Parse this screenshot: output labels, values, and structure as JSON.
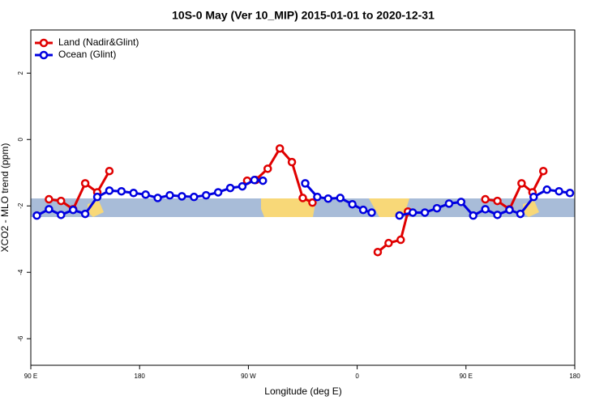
{
  "chart_data": {
    "type": "line",
    "title": "10S-0 May (Ver 10_MIP)   2015-01-01 to 2020-12-31",
    "x_label": "Longitude (deg E)",
    "y_label": "XCO2 - MLO trend (ppm)",
    "xlim": [
      90,
      540
    ],
    "xticks": [
      {
        "value": 90,
        "label": "90 E"
      },
      180,
      {
        "value": 270,
        "label": "90 W"
      },
      {
        "value": 360,
        "label": "0"
      },
      {
        "value": 450,
        "label": "90 E"
      },
      {
        "value": 540,
        "label": "180"
      }
    ],
    "ylim": [
      -6.8,
      3.3
    ],
    "yticks": [
      2,
      0,
      -2,
      -4,
      -6
    ],
    "grid": false,
    "legend": "top-left",
    "series": [
      {
        "name": "Land (Nadir&Glint)",
        "color": "#e00000",
        "x": [
          105,
          115,
          125,
          135,
          145,
          155,
          210,
          269,
          276,
          286,
          296,
          306,
          315,
          323,
          350,
          377,
          386,
          396,
          402,
          430,
          466,
          476,
          486,
          496,
          505,
          514
        ],
        "values": [
          -1.8,
          -1.85,
          -2.1,
          -1.32,
          -1.59,
          -0.95,
          null,
          -1.24,
          -1.22,
          -0.88,
          -0.27,
          -0.68,
          -1.76,
          -1.9,
          null,
          -3.39,
          -3.12,
          -3.02,
          -2.17,
          null,
          -1.8,
          -1.85,
          -2.1,
          -1.32,
          -1.59,
          -0.95
        ]
      },
      {
        "name": "Ocean (Glint)",
        "color": "#0000e0",
        "x": [
          95,
          105,
          115,
          125,
          135,
          145,
          155,
          165,
          175,
          185,
          195,
          205,
          215,
          225,
          235,
          245,
          255,
          265,
          275,
          282,
          300,
          317,
          327,
          336,
          346,
          356,
          365,
          372,
          385,
          395,
          406,
          416,
          426,
          436,
          446,
          456,
          466,
          476,
          486,
          495,
          506,
          517,
          527,
          536
        ],
        "values": [
          -2.29,
          -2.1,
          -2.27,
          -2.12,
          -2.24,
          -1.73,
          -1.54,
          -1.56,
          -1.61,
          -1.66,
          -1.76,
          -1.68,
          -1.71,
          -1.73,
          -1.68,
          -1.59,
          -1.46,
          -1.41,
          -1.22,
          -1.24,
          null,
          -1.32,
          -1.73,
          -1.78,
          -1.76,
          -1.95,
          -2.12,
          -2.2,
          null,
          -2.29,
          -2.2,
          -2.2,
          -2.07,
          -1.93,
          -1.88,
          -2.29,
          -2.1,
          -2.27,
          -2.12,
          -2.24,
          -1.73,
          -1.51,
          -1.56,
          -1.61
        ]
      }
    ]
  }
}
